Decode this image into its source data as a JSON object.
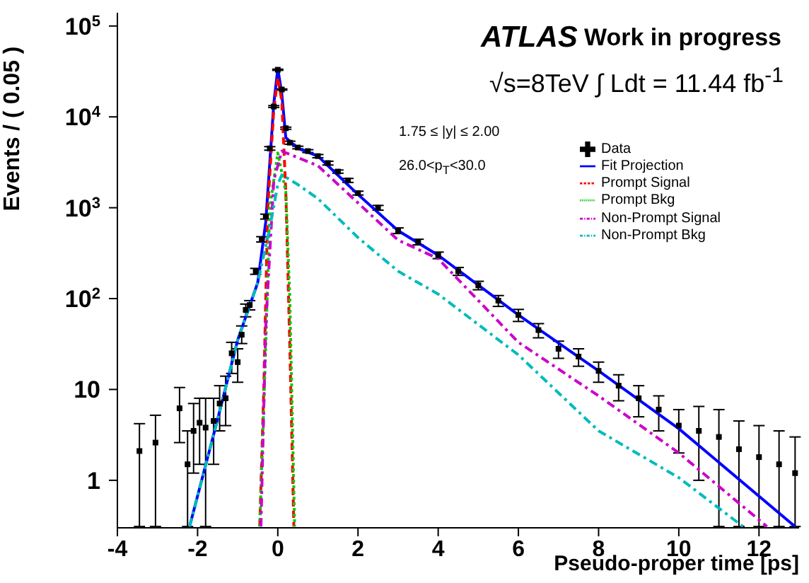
{
  "chart_data": {
    "type": "line",
    "xlabel": "Pseudo-proper time [ps]",
    "ylabel": "Events / ( 0.05 )",
    "annotations": [
      "ATLAS",
      "Work in progress",
      "√s=8TeV ∫ Ldt = 11.44 fb$^{-1}$",
      "1.75 ≤ |y| ≤ 2.00",
      "26.0<p$_{T}$<30.0"
    ],
    "xlim": [
      -4,
      13
    ],
    "xticks": [
      -4,
      -2,
      0,
      2,
      4,
      6,
      8,
      10,
      12
    ],
    "ylim": [
      0.3,
      140000
    ],
    "yticks": [
      1,
      10,
      {
        "value": 100,
        "label": "10$^{2}$"
      },
      {
        "value": 1000,
        "label": "10$^{3}$"
      },
      {
        "value": 10000,
        "label": "10$^{4}$"
      },
      {
        "value": 100000,
        "label": "10$^{5}$"
      }
    ],
    "log": "y",
    "legend": "top right",
    "series": [
      {
        "name": "Data",
        "type": "scatter",
        "color": "#000000",
        "marker": "square",
        "x": [
          -3.45,
          -3.05,
          -2.45,
          -2.25,
          -2.1,
          -1.95,
          -1.8,
          -1.6,
          -1.45,
          -1.3,
          -1.15,
          -1.0,
          -0.9,
          -0.8,
          -0.7,
          -0.55,
          -0.4,
          -0.3,
          -0.2,
          -0.1,
          0,
          0.1,
          0.2,
          0.3,
          0.5,
          0.75,
          1,
          1.25,
          1.5,
          1.75,
          2,
          2.5,
          3,
          3.5,
          4,
          4.5,
          5,
          5.5,
          6,
          6.5,
          7,
          7.5,
          8,
          8.5,
          9,
          9.5,
          10,
          10.5,
          11,
          11.5,
          12,
          12.5,
          12.9
        ],
        "values": [
          2.1,
          2.6,
          6.2,
          1.5,
          3.5,
          4.3,
          3.8,
          4.5,
          7,
          8,
          25,
          20,
          40,
          75,
          85,
          200,
          450,
          800,
          4500,
          13000,
          33000,
          20000,
          7500,
          5200,
          4600,
          4200,
          3700,
          3100,
          2500,
          2000,
          1450,
          1000,
          560,
          420,
          300,
          200,
          140,
          95,
          66,
          45,
          28,
          23,
          16,
          11,
          8,
          6,
          4,
          3.5,
          3,
          2.2,
          1.8,
          1.5,
          1.2
        ],
        "errors": [
          [
            0.31,
            4.2
          ],
          [
            0.31,
            5.2
          ],
          [
            2.6,
            10.5
          ],
          [
            0.31,
            3.5
          ],
          [
            1.2,
            7
          ],
          [
            1.5,
            8
          ],
          [
            0.31,
            8
          ],
          [
            1.5,
            8
          ],
          [
            3.5,
            11
          ],
          [
            4,
            14
          ],
          [
            15,
            33
          ],
          [
            12,
            28
          ],
          [
            32,
            50
          ],
          [
            63,
            87
          ],
          [
            75,
            95
          ],
          [
            185,
            215
          ],
          [
            420,
            480
          ],
          [
            750,
            850
          ],
          [
            4300,
            4700
          ],
          [
            12700,
            13300
          ],
          [
            32500,
            33500
          ],
          [
            19700,
            20300
          ],
          [
            7300,
            7700
          ],
          [
            5000,
            5400
          ],
          [
            4450,
            4750
          ],
          [
            4050,
            4350
          ],
          [
            3550,
            3850
          ],
          [
            2950,
            3250
          ],
          [
            2400,
            2600
          ],
          [
            1900,
            2100
          ],
          [
            1380,
            1520
          ],
          [
            940,
            1060
          ],
          [
            520,
            600
          ],
          [
            390,
            450
          ],
          [
            275,
            325
          ],
          [
            180,
            220
          ],
          [
            125,
            155
          ],
          [
            82,
            108
          ],
          [
            56,
            76
          ],
          [
            37,
            53
          ],
          [
            22,
            34
          ],
          [
            18,
            28
          ],
          [
            12,
            20
          ],
          [
            7.5,
            14.5
          ],
          [
            5,
            11
          ],
          [
            3.5,
            8.5
          ],
          [
            2,
            6
          ],
          [
            1,
            6.5
          ],
          [
            0.31,
            6
          ],
          [
            0.31,
            4.5
          ],
          [
            0.31,
            4
          ],
          [
            0.31,
            3.5
          ],
          [
            0.31,
            3
          ]
        ]
      },
      {
        "name": "Fit Projection",
        "color": "#0000ff",
        "line_style": "solid",
        "x": [
          -2.2,
          -1.5,
          -1,
          -0.5,
          -0.3,
          -0.2,
          -0.1,
          0,
          0.1,
          0.2,
          0.5,
          1,
          2,
          3,
          4,
          6,
          8,
          10,
          12.9
        ],
        "values": [
          0.31,
          4.7,
          35,
          150,
          700,
          3100,
          14000,
          34000,
          18000,
          5900,
          4500,
          3700,
          1400,
          560,
          300,
          66,
          16,
          3.7,
          0.31
        ]
      },
      {
        "name": "Prompt Signal",
        "color": "#ff0000",
        "line_style": "dashed",
        "x": [
          -0.45,
          -0.35,
          -0.25,
          -0.1,
          0,
          0.1,
          0.2,
          0.3,
          0.4
        ],
        "values": [
          0.31,
          10,
          1000,
          12000,
          27000,
          15000,
          1500,
          30,
          0.31
        ]
      },
      {
        "name": "Prompt Bkg",
        "color": "#00cc00",
        "line_style": "dotted",
        "x": [
          -0.45,
          -0.3,
          -0.2,
          0,
          0.2,
          0.3,
          0.42
        ],
        "values": [
          0.31,
          30,
          1000,
          4000,
          1500,
          100,
          0.31
        ]
      },
      {
        "name": "Non-Prompt Signal",
        "color": "#cc00cc",
        "line_style": "dashdot",
        "x": [
          -0.42,
          -0.3,
          -0.1,
          0.1,
          1,
          3,
          4,
          6,
          8,
          10,
          12.2
        ],
        "values": [
          0.31,
          50,
          2000,
          4200,
          2900,
          440,
          275,
          33,
          8.5,
          2,
          0.31
        ]
      },
      {
        "name": "Non-Prompt Bkg",
        "color": "#00bbbb",
        "line_style": "dashdot",
        "x": [
          -2.2,
          -1.5,
          -1,
          -0.5,
          -0.2,
          0,
          0.1,
          0.5,
          1,
          2,
          3,
          4,
          6,
          8,
          10,
          11.6
        ],
        "values": [
          0.31,
          4.7,
          35,
          150,
          600,
          1800,
          2300,
          1800,
          1260,
          470,
          200,
          112,
          24,
          3.5,
          1.07,
          0.31
        ]
      }
    ]
  }
}
